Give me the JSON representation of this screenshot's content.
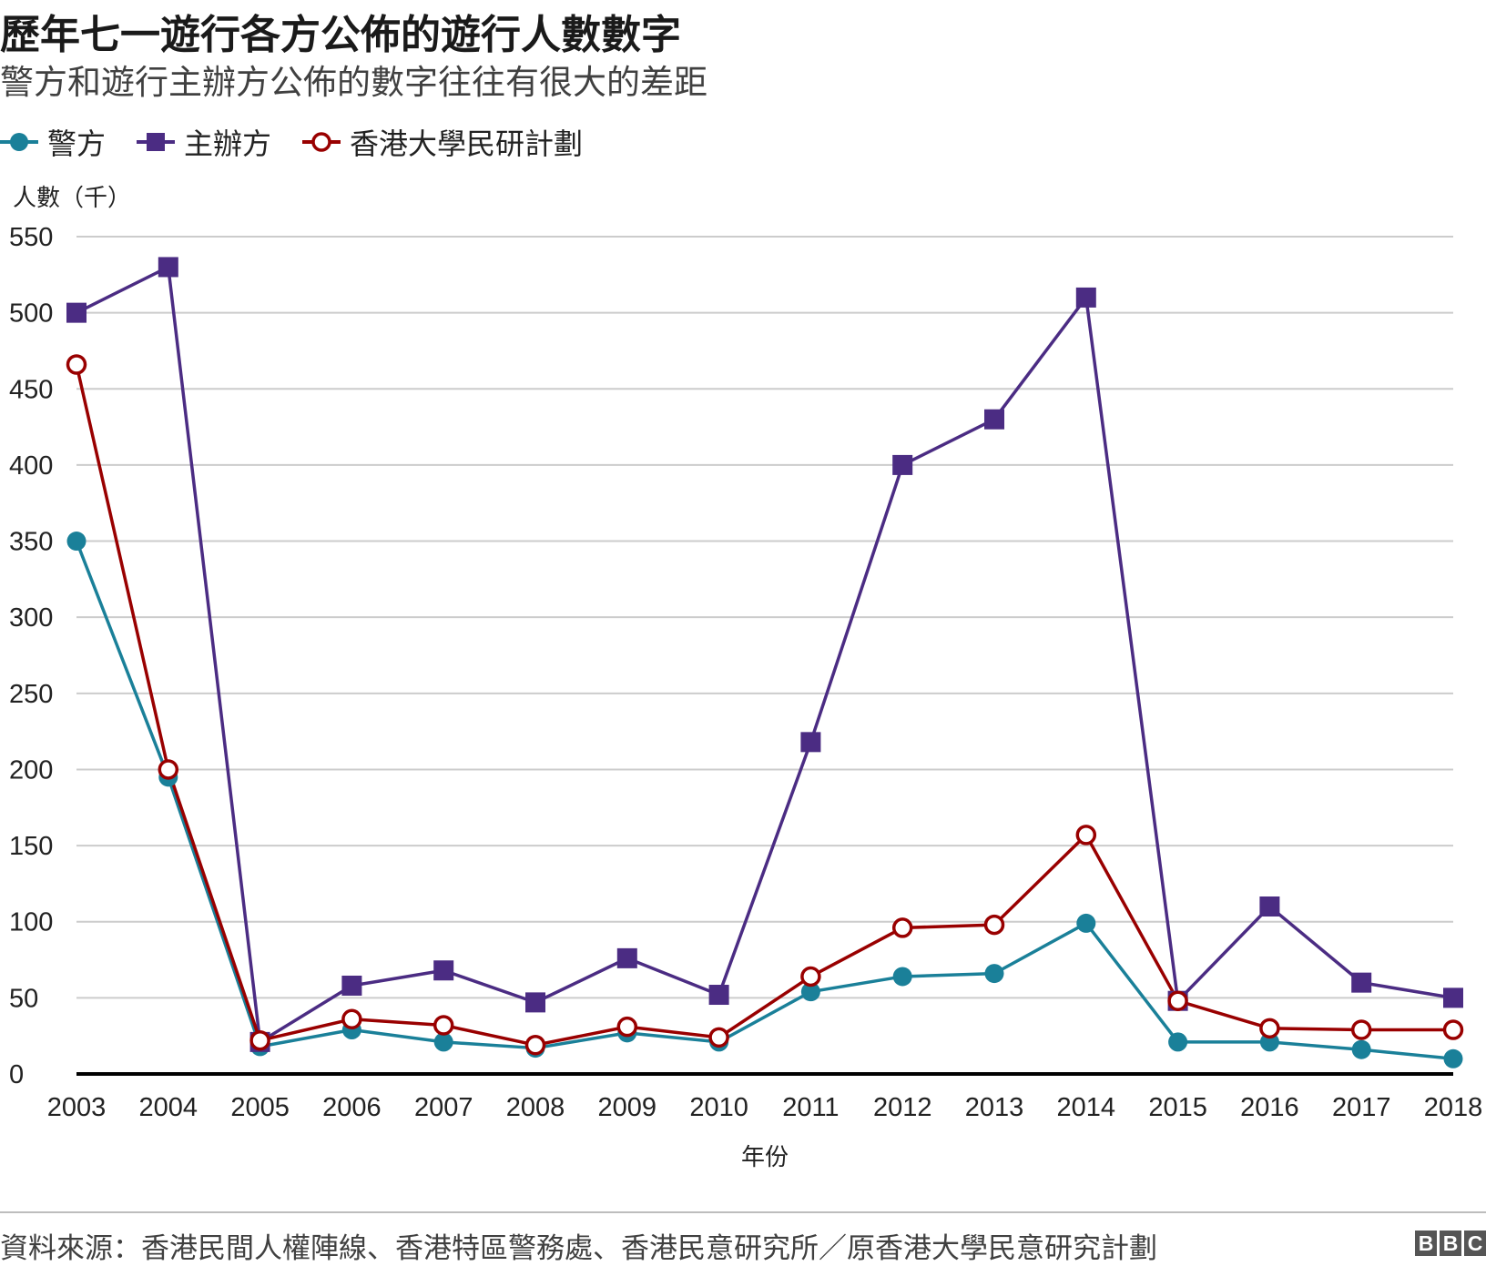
{
  "colors": {
    "police": "#1a8099",
    "organizer": "#4b2c83",
    "hku": "#990000",
    "grid": "#cccccc",
    "axis": "#000000",
    "text": "#222222"
  },
  "brand": {
    "letters": [
      "B",
      "B",
      "C"
    ]
  },
  "chart_data": {
    "type": "line",
    "title": "歷年七一遊行各方公佈的遊行人數數字",
    "subtitle": "警方和遊行主辦方公佈的數字往往有很大的差距",
    "ylabel": "人數（千）",
    "xlabel": "年份",
    "ylim": [
      0,
      550
    ],
    "yticks": [
      0,
      50,
      100,
      150,
      200,
      250,
      300,
      350,
      400,
      450,
      500,
      550
    ],
    "grid": true,
    "legend_position": "top-left",
    "x": [
      "2003",
      "2004",
      "2005",
      "2006",
      "2007",
      "2008",
      "2009",
      "2010",
      "2011",
      "2012",
      "2013",
      "2014",
      "2015",
      "2016",
      "2017",
      "2018"
    ],
    "series": [
      {
        "name": "警方",
        "marker": "circle",
        "values": [
          350,
          195,
          18,
          29,
          21,
          17,
          27,
          21,
          54,
          64,
          66,
          99,
          21,
          21,
          16,
          10
        ]
      },
      {
        "name": "主辦方",
        "marker": "square",
        "values": [
          500,
          530,
          21,
          58,
          68,
          47,
          76,
          52,
          218,
          400,
          430,
          510,
          48,
          110,
          60,
          50
        ]
      },
      {
        "name": "香港大學民研計劃",
        "marker": "hollow-circle",
        "values": [
          466,
          200,
          22,
          36,
          32,
          19,
          31,
          24,
          64,
          96,
          98,
          157,
          48,
          30,
          29,
          29
        ]
      }
    ],
    "source": "資料來源：香港民間人權陣線、香港特區警務處、香港民意研究所／原香港大學民意研究計劃"
  }
}
